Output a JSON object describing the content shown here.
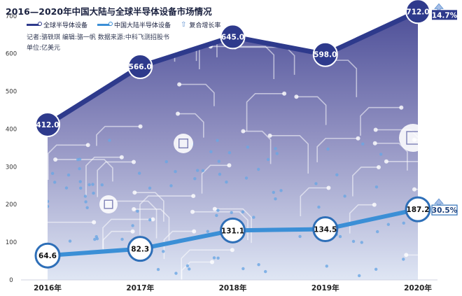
{
  "header": {
    "title": "2016—2020年中国大陆与全球半导体设备市场情况",
    "credits": "记者:骆轶琪    编辑:骆一帆    数据来源:中科飞测招股书",
    "unit": "单位:亿美元"
  },
  "legend": {
    "items": [
      {
        "label": "全球半导体设备",
        "color": "#2e3a8c",
        "icon": "line-dot-icon"
      },
      {
        "label": "中国大陆半导体设备",
        "color": "#3b8fd6",
        "icon": "line-dot-icon"
      },
      {
        "label": "复合增长率",
        "color": "#5a8fd0",
        "icon": "up-arrow-icon"
      }
    ]
  },
  "chart_data": {
    "type": "line",
    "title": "2016—2020年中国大陆与全球半导体设备市场情况",
    "x": [
      "2016年",
      "2017年",
      "2018年",
      "2019年",
      "2020年"
    ],
    "series": [
      {
        "name": "全球半导体设备",
        "values": [
          412.0,
          566.0,
          645.0,
          598.0,
          712.0
        ],
        "labels": [
          "412.0",
          "566.0",
          "645.0",
          "598.0",
          "712.0"
        ],
        "color": "#2e3a8c",
        "cagr": "14.7%"
      },
      {
        "name": "中国大陆半导体设备",
        "values": [
          64.6,
          82.3,
          131.1,
          134.5,
          187.2
        ],
        "labels": [
          "64.6",
          "82.3",
          "131.1",
          "134.5",
          "187.2"
        ],
        "color": "#3b8fd6",
        "cagr": "30.5%"
      }
    ],
    "yticks": [
      0,
      100,
      200,
      300,
      400,
      500,
      600,
      700
    ],
    "ylim": [
      0,
      720
    ],
    "grid": false,
    "legend_position": "top-left",
    "area_fill": true
  }
}
